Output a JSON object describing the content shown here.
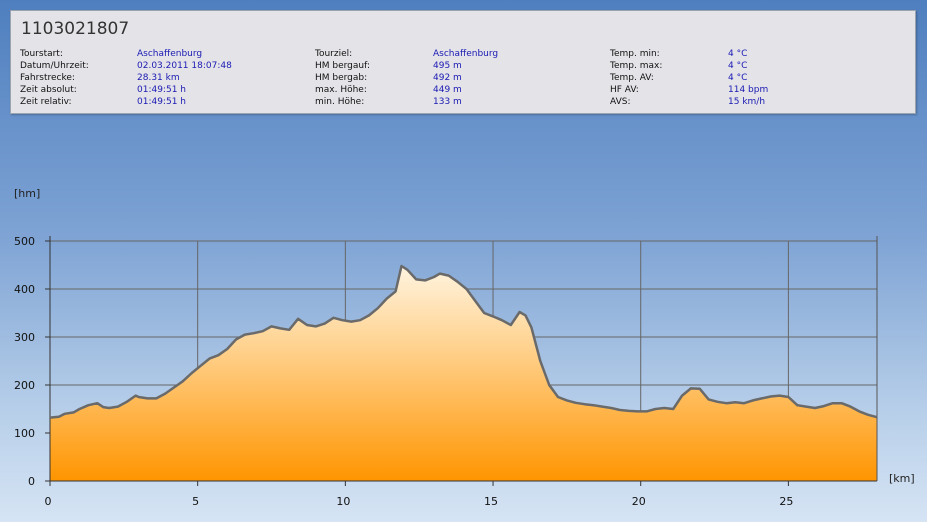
{
  "header": {
    "tour_id": "1103021807",
    "columns": [
      {
        "rows": [
          {
            "label": "Tourstart:",
            "value": "Aschaffenburg"
          },
          {
            "label": "Datum/Uhrzeit:",
            "value": "02.03.2011 18:07:48"
          },
          {
            "label": "Fahrstrecke:",
            "value": "28.31 km"
          },
          {
            "label": "Zeit absolut:",
            "value": "01:49:51 h"
          },
          {
            "label": "Zeit relativ:",
            "value": "01:49:51 h"
          }
        ]
      },
      {
        "rows": [
          {
            "label": "Tourziel:",
            "value": "Aschaffenburg"
          },
          {
            "label": "HM bergauf:",
            "value": "495 m"
          },
          {
            "label": "HM bergab:",
            "value": "492 m"
          },
          {
            "label": "max. Höhe:",
            "value": "449 m"
          },
          {
            "label": "min. Höhe:",
            "value": "133 m"
          }
        ]
      },
      {
        "rows": [
          {
            "label": "Temp. min:",
            "value": "4 °C"
          },
          {
            "label": "Temp. max:",
            "value": "4 °C"
          },
          {
            "label": "Temp. AV:",
            "value": "4 °C"
          },
          {
            "label": "HF AV:",
            "value": "114 bpm"
          },
          {
            "label": "AVS:",
            "value": "15 km/h"
          }
        ]
      }
    ]
  },
  "chart_data": {
    "type": "area",
    "ylabel": "[hm]",
    "xlabel": "[km]",
    "xlim": [
      0,
      28
    ],
    "ylim": [
      0,
      500
    ],
    "x_ticks": [
      0,
      5,
      10,
      15,
      20,
      25
    ],
    "y_ticks": [
      0,
      100,
      200,
      300,
      400,
      500
    ],
    "grid": true,
    "colors": {
      "fill_top": "#fff4e0",
      "fill_bottom": "#ff9500",
      "line": "#6a6a6a",
      "grid": "#666666"
    },
    "series": [
      {
        "x": [
          0,
          0.3,
          0.5,
          0.8,
          1.0,
          1.3,
          1.6,
          1.8,
          2.0,
          2.3,
          2.6,
          2.9,
          3.0,
          3.3,
          3.6,
          3.9,
          4.2,
          4.5,
          4.8,
          5.1,
          5.4,
          5.7,
          6.0,
          6.3,
          6.6,
          6.9,
          7.2,
          7.5,
          7.8,
          8.1,
          8.4,
          8.7,
          9.0,
          9.3,
          9.6,
          9.9,
          10.2,
          10.5,
          10.8,
          11.1,
          11.4,
          11.7,
          11.9,
          12.1,
          12.4,
          12.7,
          13.0,
          13.2,
          13.5,
          13.8,
          14.1,
          14.4,
          14.7,
          15.0,
          15.3,
          15.6,
          15.9,
          16.1,
          16.3,
          16.6,
          16.9,
          17.2,
          17.5,
          17.8,
          18.1,
          18.4,
          18.7,
          19.0,
          19.3,
          19.6,
          19.9,
          20.2,
          20.5,
          20.8,
          21.1,
          21.4,
          21.7,
          22.0,
          22.3,
          22.6,
          22.9,
          23.2,
          23.5,
          23.8,
          24.1,
          24.4,
          24.7,
          25.0,
          25.3,
          25.6,
          25.9,
          26.2,
          26.5,
          26.8,
          27.1,
          27.4,
          27.7,
          28.0
        ],
        "y": [
          132,
          134,
          140,
          143,
          150,
          158,
          162,
          154,
          152,
          155,
          165,
          178,
          175,
          172,
          172,
          182,
          195,
          208,
          225,
          240,
          255,
          262,
          275,
          295,
          305,
          308,
          312,
          322,
          318,
          315,
          338,
          325,
          322,
          328,
          340,
          335,
          332,
          335,
          345,
          360,
          380,
          395,
          448,
          440,
          420,
          418,
          425,
          432,
          428,
          415,
          400,
          375,
          350,
          343,
          335,
          325,
          352,
          345,
          320,
          250,
          200,
          175,
          168,
          163,
          160,
          158,
          155,
          152,
          148,
          146,
          145,
          145,
          150,
          152,
          150,
          178,
          193,
          192,
          170,
          165,
          162,
          164,
          162,
          168,
          172,
          176,
          178,
          175,
          158,
          155,
          152,
          156,
          162,
          162,
          155,
          145,
          138,
          133
        ]
      }
    ]
  }
}
